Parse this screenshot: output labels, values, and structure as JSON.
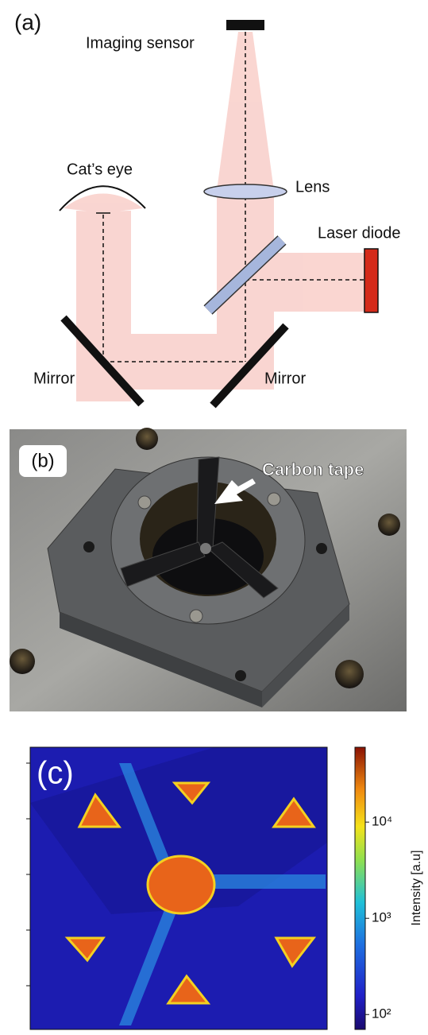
{
  "panel_a": {
    "label": "(a)",
    "imaging_sensor": "Imaging sensor",
    "cats_eye": "Cat’s eye",
    "lens": "Lens",
    "laser_diode": "Laser diode",
    "mirror_left": "Mirror",
    "mirror_right": "Mirror"
  },
  "panel_b": {
    "label": "(b)",
    "annotation": "Carbon tape"
  },
  "panel_c": {
    "label": "(c)",
    "colorbar": {
      "label": "Intensity [a.u]",
      "log_scale": true,
      "lim": [
        70,
        60000
      ],
      "ticks": [
        {
          "value": 100,
          "label": "10²"
        },
        {
          "value": 1000,
          "label": "10³"
        },
        {
          "value": 10000,
          "label": "10⁴"
        }
      ]
    }
  }
}
